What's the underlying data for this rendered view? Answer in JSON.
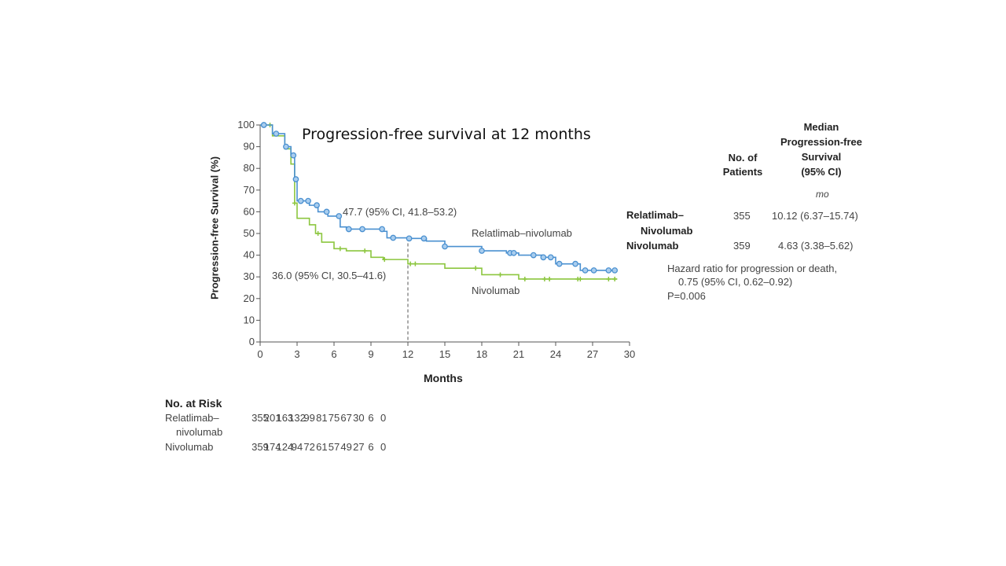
{
  "chart_data": {
    "type": "line",
    "title": "Progression-free survival at 12 months",
    "xlabel": "Months",
    "ylabel": "Progression-free Survival (%)",
    "xlim": [
      0,
      30
    ],
    "ylim": [
      0,
      100
    ],
    "xticks": [
      0,
      3,
      6,
      9,
      12,
      15,
      18,
      21,
      24,
      27,
      30
    ],
    "yticks": [
      0,
      10,
      20,
      30,
      40,
      50,
      60,
      70,
      80,
      90,
      100
    ],
    "grid": false,
    "reference_line_x": 12,
    "series": [
      {
        "name": "Relatlimab–nivolumab",
        "color": "#4a90d0",
        "marker": "circle",
        "x": [
          0,
          1,
          2,
          2.5,
          2.8,
          3,
          4,
          4.7,
          5.5,
          6.5,
          7,
          10,
          10.3,
          12,
          13.5,
          15,
          18,
          20,
          21,
          23,
          24,
          26,
          29
        ],
        "y": [
          100,
          96,
          90,
          86,
          75,
          65,
          63,
          60,
          58,
          53,
          52,
          51,
          48,
          47.7,
          46.5,
          44,
          42,
          41,
          40,
          39,
          36,
          33,
          33
        ],
        "censor_x": [
          0.3,
          1.3,
          2.1,
          2.7,
          2.9,
          3.3,
          3.9,
          4.6,
          5.4,
          6.4,
          7.2,
          8.3,
          9.9,
          10.8,
          12.1,
          13.3,
          15.0,
          18.0,
          20.3,
          20.6,
          22.2,
          23.0,
          23.6,
          24.3,
          25.6,
          26.4,
          27.1,
          28.3,
          28.8
        ],
        "annotation": "47.7 (95% CI, 41.8–53.2)",
        "label": "Relatlimab–nivolumab"
      },
      {
        "name": "Nivolumab",
        "color": "#8cc63f",
        "marker": "plus",
        "x": [
          0,
          1,
          2,
          2.5,
          2.8,
          3,
          4,
          4.5,
          5,
          6,
          7,
          9,
          10,
          12,
          15,
          18,
          21,
          29
        ],
        "y": [
          100,
          95,
          89,
          82,
          64,
          57,
          54,
          50,
          46,
          43,
          42,
          39,
          38,
          36,
          34,
          31,
          29,
          29
        ],
        "censor_x": [
          0.8,
          2.8,
          4.7,
          6.5,
          8.5,
          10.1,
          12.2,
          12.6,
          17.5,
          19.5,
          21.5,
          23.1,
          23.5,
          25.8,
          26.0,
          28.3,
          28.8
        ],
        "annotation": "36.0 (95% CI, 30.5–41.6)",
        "label": "Nivolumab"
      }
    ]
  },
  "legend_table": {
    "header_patients": [
      "No. of",
      "Patients"
    ],
    "header_median": [
      "Median",
      "Progression-free",
      "Survival",
      "(95% CI)"
    ],
    "units": "mo",
    "rows": [
      {
        "name1": "Relatlimab–",
        "name2": "Nivolumab",
        "patients": "355",
        "median": "10.12 (6.37–15.74)"
      },
      {
        "name1": "Nivolumab",
        "patients": "359",
        "median": "4.63 (3.38–5.62)"
      }
    ],
    "hazard1": "Hazard ratio for progression or death,",
    "hazard2": "0.75 (95% CI, 0.62–0.92)",
    "p_value": "P=0.006"
  },
  "at_risk": {
    "title": "No. at Risk",
    "rows": [
      {
        "label1": "Relatlimab–",
        "label2": "nivolumab",
        "values": [
          "355",
          "201",
          "163",
          "132",
          "99",
          "81",
          "75",
          "67",
          "30",
          "6",
          "0"
        ]
      },
      {
        "label1": "Nivolumab",
        "values": [
          "359",
          "174",
          "124",
          "94",
          "72",
          "61",
          "57",
          "49",
          "27",
          "6",
          "0"
        ]
      }
    ]
  }
}
